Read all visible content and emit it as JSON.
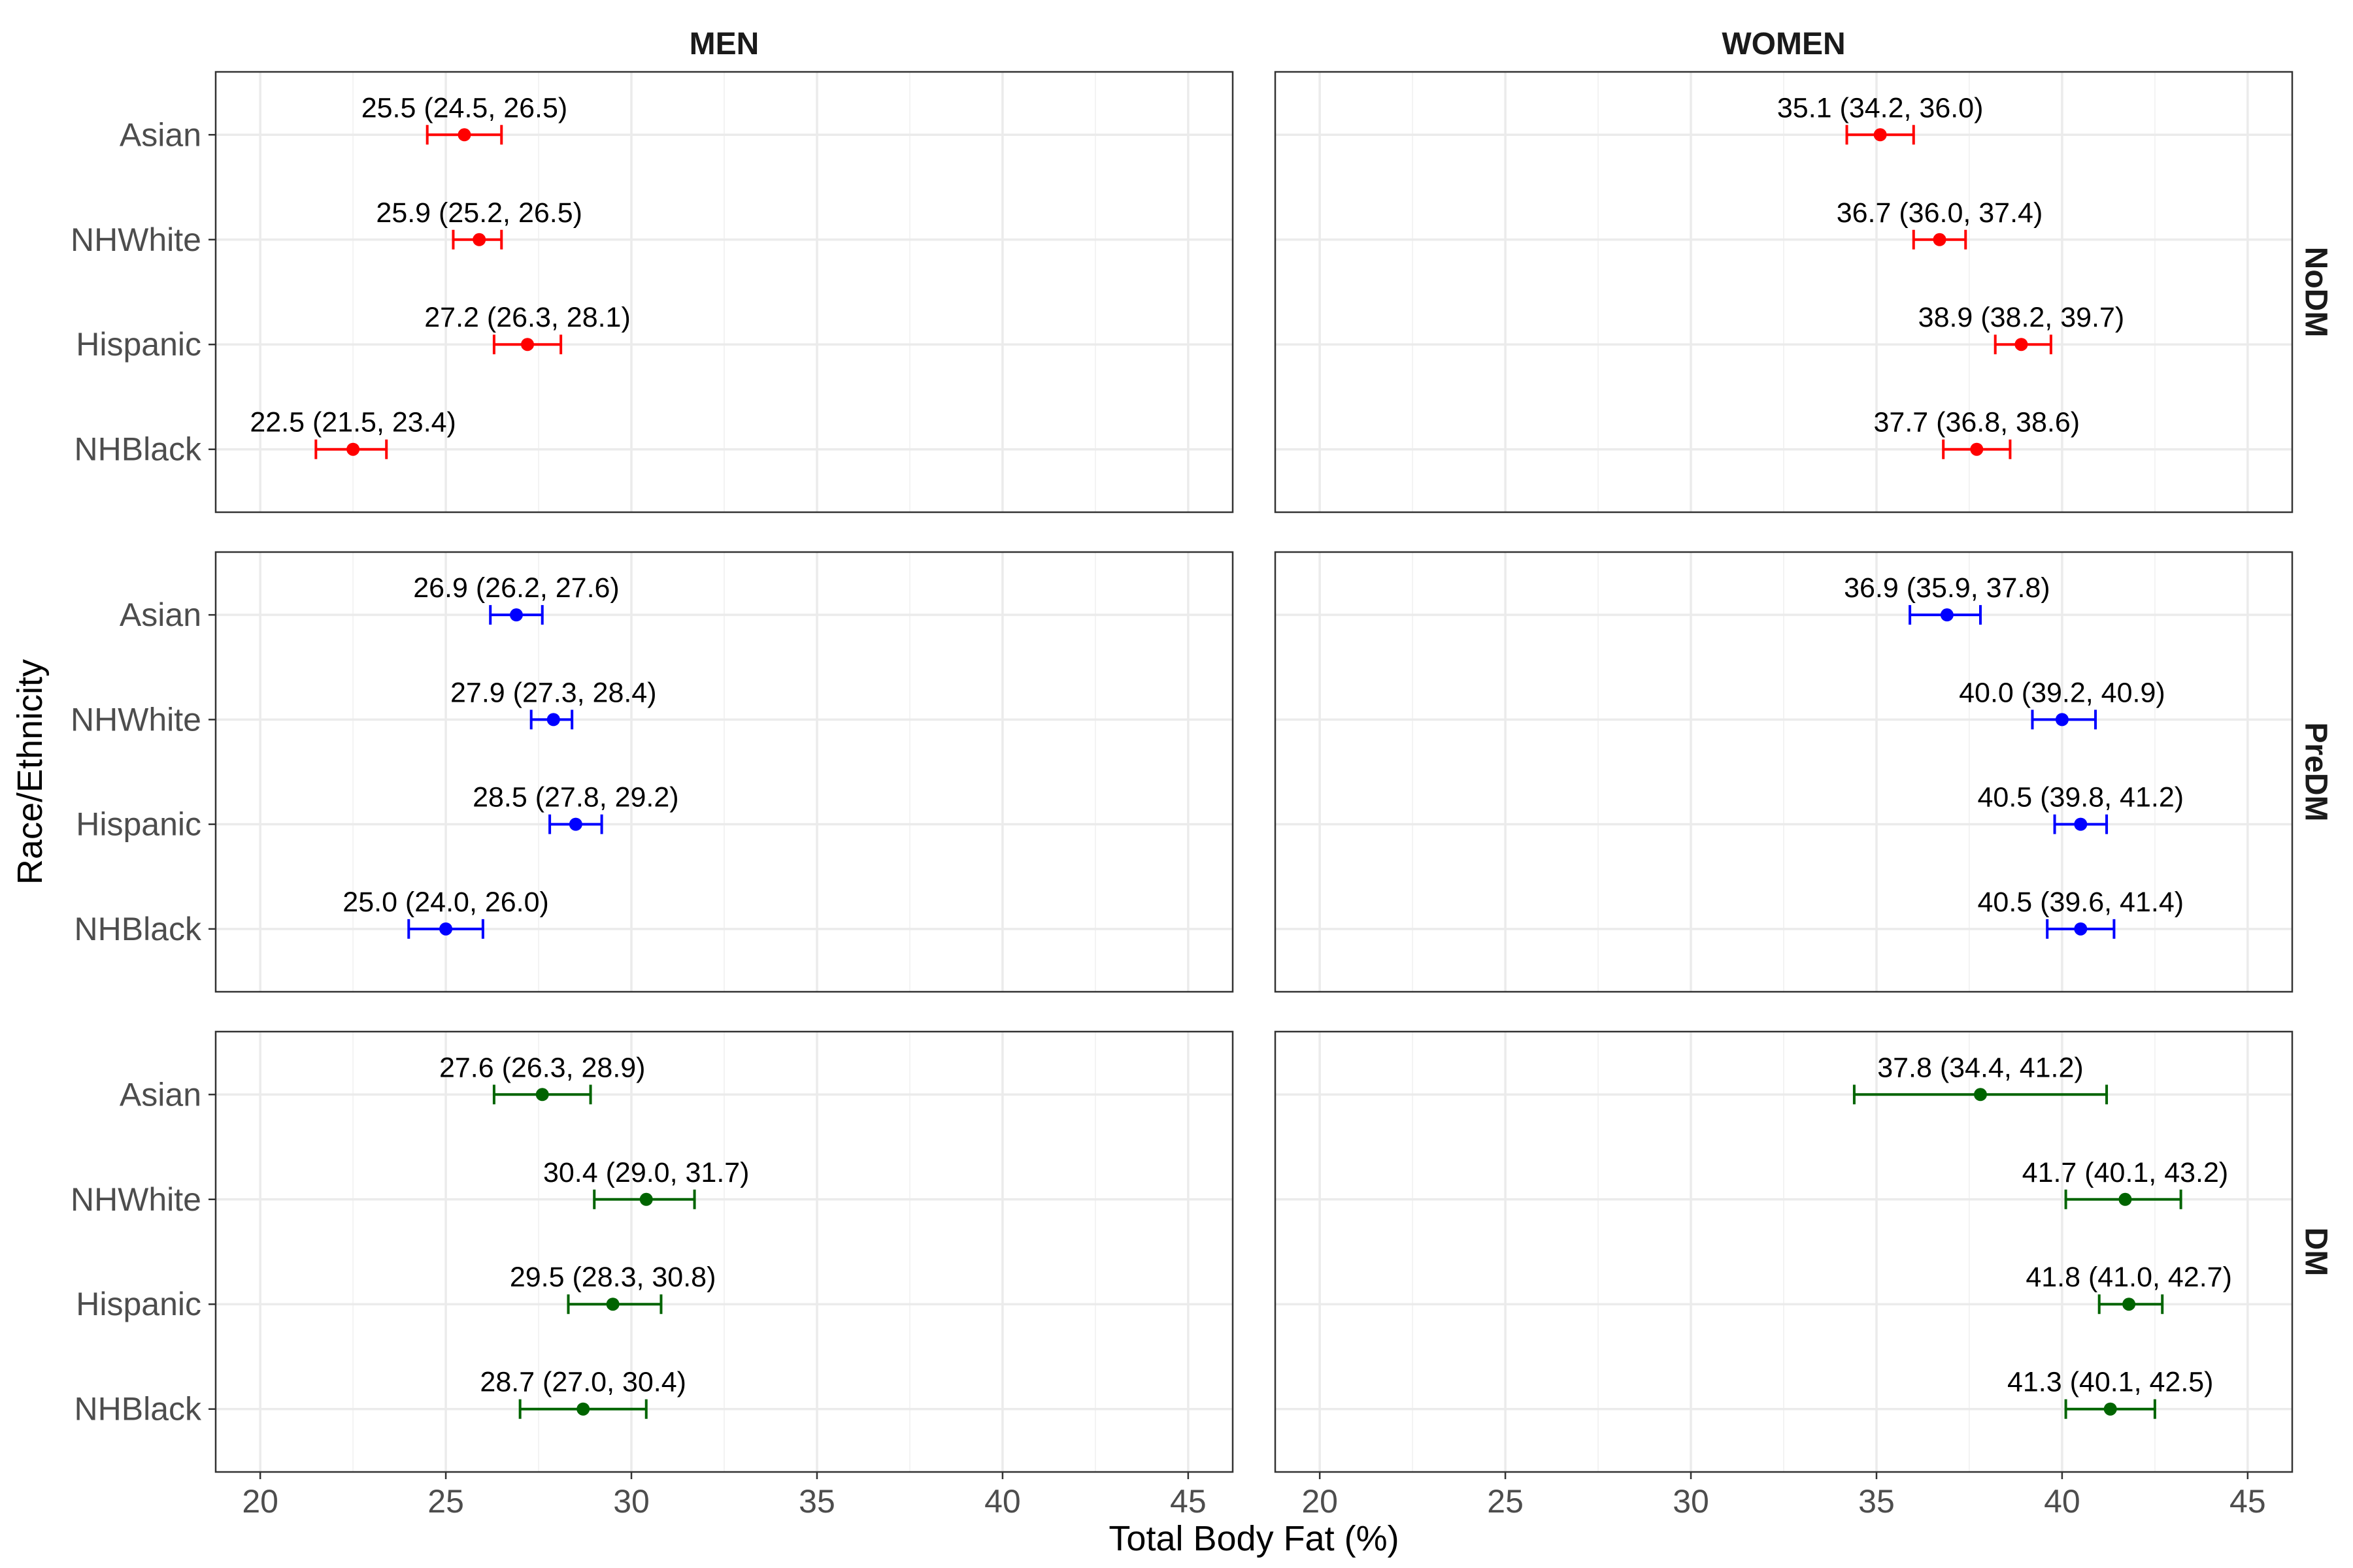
{
  "chart_data": {
    "type": "scatter",
    "title": "",
    "xlabel": "Total Body Fat (%)",
    "ylabel": "Race/Ethnicity",
    "xlim": [
      18.8,
      46.2
    ],
    "x_ticks": [
      "20",
      "25",
      "30",
      "35",
      "40",
      "45"
    ],
    "x_tick_values": [
      20,
      25,
      30,
      35,
      40,
      45
    ],
    "columns": [
      "MEN",
      "WOMEN"
    ],
    "rows": [
      "NoDM",
      "PreDM",
      "DM"
    ],
    "categories": [
      "Asian",
      "NHWhite",
      "Hispanic",
      "NHBlack"
    ],
    "grid": true,
    "legend": "none",
    "colors": {
      "NoDM": "#ff0000",
      "PreDM": "#0000ff",
      "DM": "#006400"
    },
    "panels": [
      {
        "column": "MEN",
        "row": "NoDM",
        "points": [
          {
            "category": "Asian",
            "value": 25.5,
            "lower": 24.5,
            "upper": 26.5,
            "label": "25.5 (24.5, 26.5)"
          },
          {
            "category": "NHWhite",
            "value": 25.9,
            "lower": 25.2,
            "upper": 26.5,
            "label": "25.9 (25.2, 26.5)"
          },
          {
            "category": "Hispanic",
            "value": 27.2,
            "lower": 26.3,
            "upper": 28.1,
            "label": "27.2 (26.3, 28.1)"
          },
          {
            "category": "NHBlack",
            "value": 22.5,
            "lower": 21.5,
            "upper": 23.4,
            "label": "22.5 (21.5, 23.4)"
          }
        ]
      },
      {
        "column": "WOMEN",
        "row": "NoDM",
        "points": [
          {
            "category": "Asian",
            "value": 35.1,
            "lower": 34.2,
            "upper": 36.0,
            "label": "35.1 (34.2, 36.0)"
          },
          {
            "category": "NHWhite",
            "value": 36.7,
            "lower": 36.0,
            "upper": 37.4,
            "label": "36.7 (36.0, 37.4)"
          },
          {
            "category": "Hispanic",
            "value": 38.9,
            "lower": 38.2,
            "upper": 39.7,
            "label": "38.9 (38.2, 39.7)"
          },
          {
            "category": "NHBlack",
            "value": 37.7,
            "lower": 36.8,
            "upper": 38.6,
            "label": "37.7 (36.8, 38.6)"
          }
        ]
      },
      {
        "column": "MEN",
        "row": "PreDM",
        "points": [
          {
            "category": "Asian",
            "value": 26.9,
            "lower": 26.2,
            "upper": 27.6,
            "label": "26.9 (26.2, 27.6)"
          },
          {
            "category": "NHWhite",
            "value": 27.9,
            "lower": 27.3,
            "upper": 28.4,
            "label": "27.9 (27.3, 28.4)"
          },
          {
            "category": "Hispanic",
            "value": 28.5,
            "lower": 27.8,
            "upper": 29.2,
            "label": "28.5 (27.8, 29.2)"
          },
          {
            "category": "NHBlack",
            "value": 25.0,
            "lower": 24.0,
            "upper": 26.0,
            "label": "25.0 (24.0, 26.0)"
          }
        ]
      },
      {
        "column": "WOMEN",
        "row": "PreDM",
        "points": [
          {
            "category": "Asian",
            "value": 36.9,
            "lower": 35.9,
            "upper": 37.8,
            "label": "36.9 (35.9, 37.8)"
          },
          {
            "category": "NHWhite",
            "value": 40.0,
            "lower": 39.2,
            "upper": 40.9,
            "label": "40.0 (39.2, 40.9)"
          },
          {
            "category": "Hispanic",
            "value": 40.5,
            "lower": 39.8,
            "upper": 41.2,
            "label": "40.5 (39.8, 41.2)"
          },
          {
            "category": "NHBlack",
            "value": 40.5,
            "lower": 39.6,
            "upper": 41.4,
            "label": "40.5 (39.6, 41.4)"
          }
        ]
      },
      {
        "column": "MEN",
        "row": "DM",
        "points": [
          {
            "category": "Asian",
            "value": 27.6,
            "lower": 26.3,
            "upper": 28.9,
            "label": "27.6 (26.3, 28.9)"
          },
          {
            "category": "NHWhite",
            "value": 30.4,
            "lower": 29.0,
            "upper": 31.7,
            "label": "30.4 (29.0, 31.7)"
          },
          {
            "category": "Hispanic",
            "value": 29.5,
            "lower": 28.3,
            "upper": 30.8,
            "label": "29.5 (28.3, 30.8)"
          },
          {
            "category": "NHBlack",
            "value": 28.7,
            "lower": 27.0,
            "upper": 30.4,
            "label": "28.7 (27.0, 30.4)"
          }
        ]
      },
      {
        "column": "WOMEN",
        "row": "DM",
        "points": [
          {
            "category": "Asian",
            "value": 37.8,
            "lower": 34.4,
            "upper": 41.2,
            "label": "37.8 (34.4, 41.2)"
          },
          {
            "category": "NHWhite",
            "value": 41.7,
            "lower": 40.1,
            "upper": 43.2,
            "label": "41.7 (40.1, 43.2)"
          },
          {
            "category": "Hispanic",
            "value": 41.8,
            "lower": 41.0,
            "upper": 42.7,
            "label": "41.8 (41.0, 42.7)"
          },
          {
            "category": "NHBlack",
            "value": 41.3,
            "lower": 40.1,
            "upper": 42.5,
            "label": "41.3 (40.1, 42.5)"
          }
        ]
      }
    ]
  }
}
